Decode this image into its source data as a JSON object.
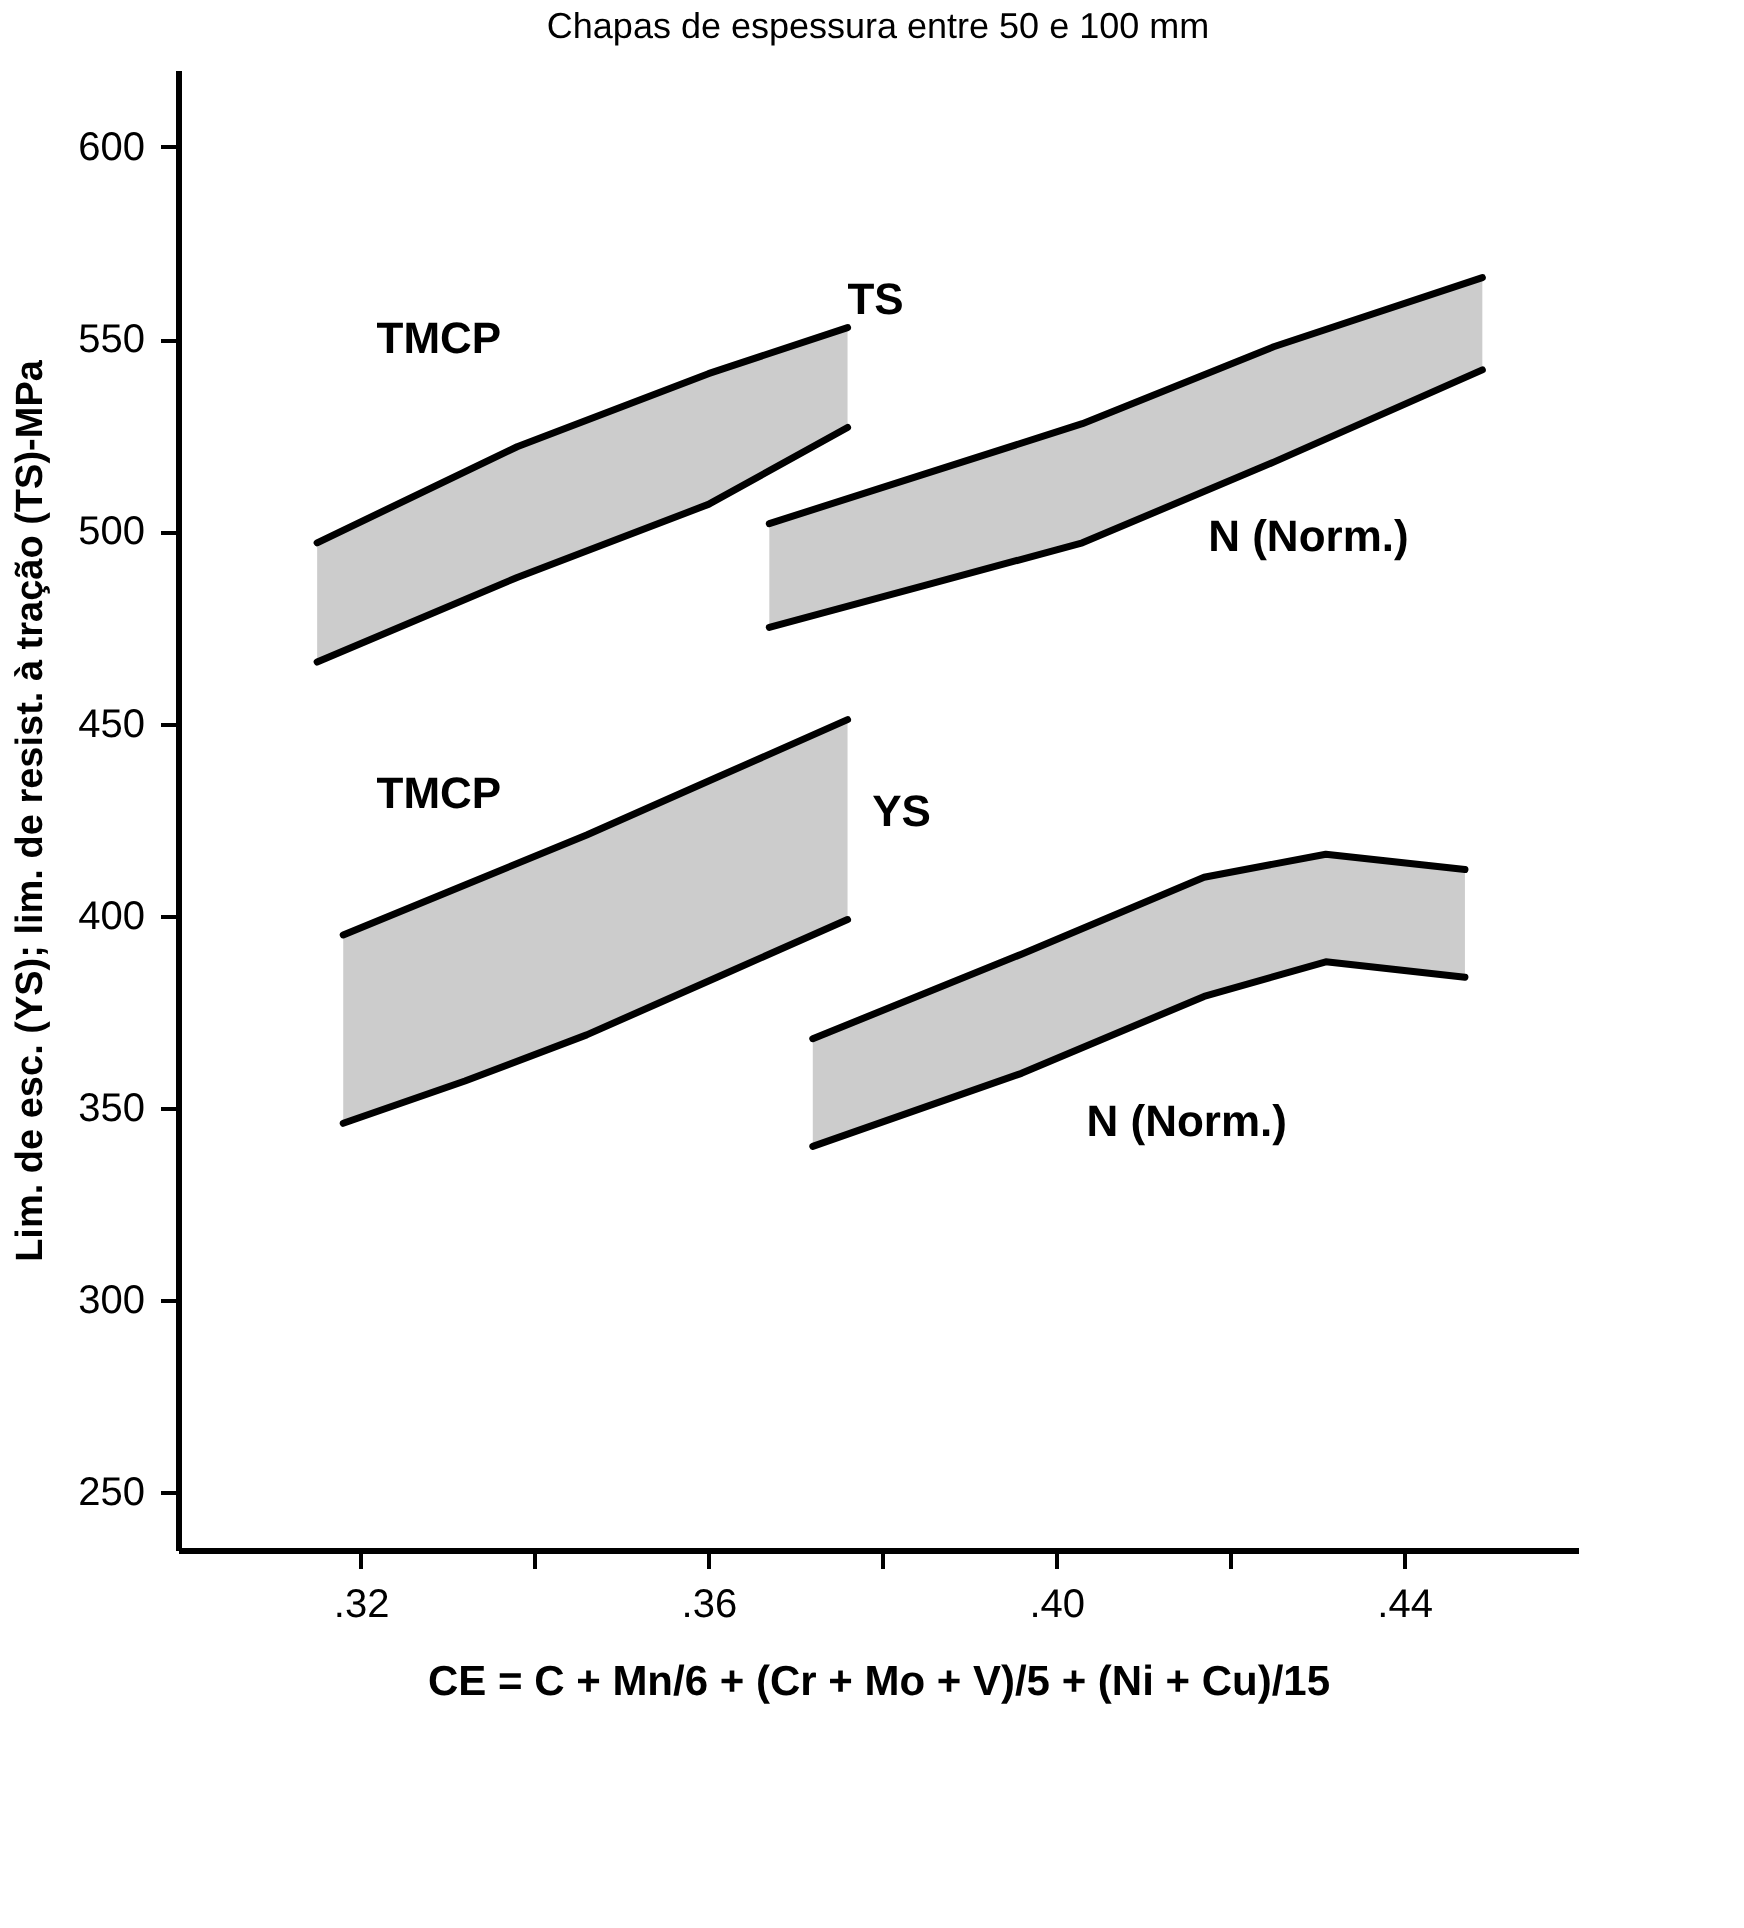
{
  "chart_data": {
    "type": "line",
    "title": "Chapas de espessura entre 50 e 100 mm",
    "xlabel": "CE = C + Mn/6 + (Cr + Mo + V)/5 + (Ni + Cu)/15",
    "ylabel": "Lim. de esc. (YS); lim. de resist. à tração (TS)-MPa",
    "xlim": [
      0.299,
      0.46
    ],
    "ylim": [
      235,
      620
    ],
    "xticks": [
      {
        "value": 0.32,
        "label": ".32"
      },
      {
        "value": 0.34,
        "label": null
      },
      {
        "value": 0.36,
        "label": ".36"
      },
      {
        "value": 0.38,
        "label": null
      },
      {
        "value": 0.4,
        "label": ".40"
      },
      {
        "value": 0.42,
        "label": null
      },
      {
        "value": 0.44,
        "label": ".44"
      }
    ],
    "yticks": [
      250,
      300,
      350,
      400,
      450,
      500,
      550,
      600
    ],
    "grid": false,
    "line_style": "solid",
    "marker": "none",
    "series": [
      {
        "color": "#000000",
        "x": [
          0.315,
          0.338,
          0.36,
          0.376
        ],
        "values": [
          497,
          522,
          541,
          553
        ],
        "lower": [
          466,
          488,
          507,
          527
        ],
        "upper": [
          497,
          522,
          541,
          553
        ]
      },
      {
        "color": "#000000",
        "x": [
          0.315,
          0.338,
          0.36,
          0.376
        ],
        "values": [
          466,
          488,
          507,
          527
        ]
      },
      {
        "color": "#000000",
        "x": [
          0.367,
          0.385,
          0.403,
          0.425,
          0.449
        ],
        "values": [
          502,
          515,
          528,
          548,
          566
        ],
        "lower": [
          475,
          486,
          497,
          518,
          542
        ],
        "upper": [
          502,
          515,
          528,
          548,
          566
        ]
      },
      {
        "color": "#000000",
        "x": [
          0.367,
          0.385,
          0.403,
          0.425,
          0.449
        ],
        "values": [
          475,
          486,
          497,
          518,
          542
        ]
      },
      {
        "color": "#000000",
        "x": [
          0.318,
          0.332,
          0.346,
          0.361,
          0.376
        ],
        "values": [
          395,
          408,
          421,
          436,
          451
        ],
        "lower": [
          346,
          357,
          369,
          384,
          399
        ],
        "upper": [
          395,
          408,
          421,
          436,
          451
        ]
      },
      {
        "color": "#000000",
        "x": [
          0.318,
          0.332,
          0.346,
          0.361,
          0.376
        ],
        "values": [
          346,
          357,
          369,
          384,
          399
        ]
      },
      {
        "color": "#000000",
        "x": [
          0.372,
          0.396,
          0.417,
          0.431,
          0.447
        ],
        "values": [
          368,
          390,
          410,
          416,
          412
        ],
        "lower": [
          340,
          359,
          379,
          388,
          384
        ],
        "upper": [
          368,
          390,
          410,
          416,
          412
        ]
      },
      {
        "color": "#000000",
        "x": [
          0.372,
          0.396,
          0.417,
          0.431,
          0.447
        ],
        "values": [
          340,
          359,
          379,
          388,
          384
        ]
      }
    ],
    "annotations": [
      {
        "text": "TMCP",
        "x": 0.329,
        "y": 512
      },
      {
        "text": "TS",
        "x": 0.376,
        "y": 553
      },
      {
        "text": "N (Norm.)",
        "x": 0.429,
        "y": 522
      },
      {
        "text": "TMCP",
        "x": 0.329,
        "y": 405
      },
      {
        "text": "YS",
        "x": 0.376,
        "y": 427
      },
      {
        "text": "N (Norm.)",
        "x": 0.415,
        "y": 377
      }
    ]
  }
}
